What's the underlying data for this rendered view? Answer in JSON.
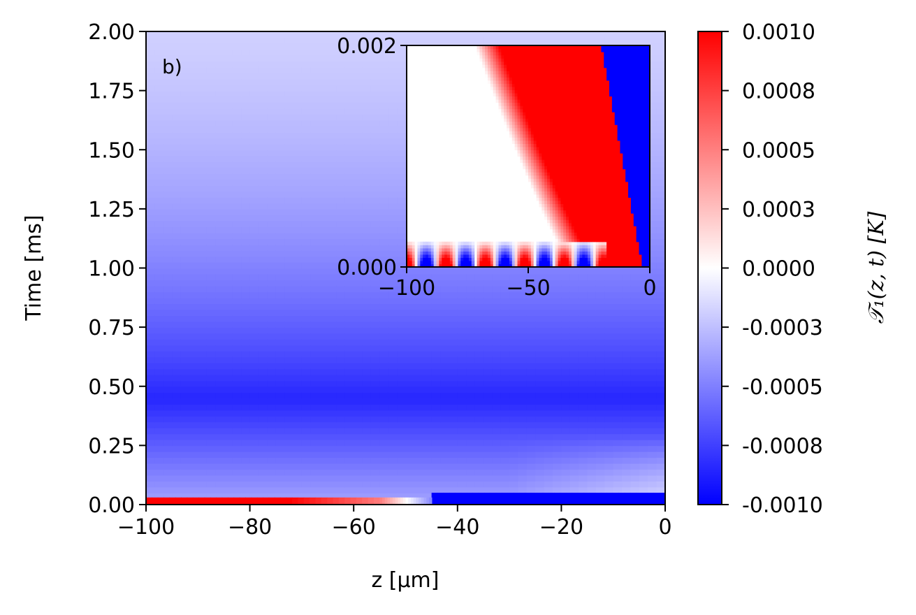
{
  "chart_data": [
    {
      "type": "heatmap",
      "panel_label": "b)",
      "xlabel": "z [µm]",
      "ylabel": "Time [ms]",
      "xlim": [
        -100,
        0
      ],
      "ylim": [
        0,
        2
      ],
      "x_ticks": [
        "−100",
        "−80",
        "−60",
        "−40",
        "−20",
        "0"
      ],
      "x_tick_values": [
        -100,
        -80,
        -60,
        -40,
        -20,
        0
      ],
      "y_ticks": [
        "0.00",
        "0.25",
        "0.50",
        "0.75",
        "1.00",
        "1.25",
        "1.50",
        "1.75",
        "2.00"
      ],
      "y_tick_values": [
        0,
        0.25,
        0.5,
        0.75,
        1.0,
        1.25,
        1.5,
        1.75,
        2.0
      ],
      "colormap": "bwr",
      "features": [
        {
          "description": "positive band near t=0 for z < -55",
          "z_range": [
            -100,
            -55
          ],
          "t_range": [
            0,
            0.03
          ],
          "value": 0.001
        },
        {
          "description": "negative band near t=0 for z > -45",
          "z_range": [
            -45,
            0
          ],
          "t_range": [
            0,
            0.05
          ],
          "value": -0.001
        },
        {
          "description": "broad cooling minimum",
          "t_center": 0.45,
          "value": -0.00085
        },
        {
          "description": "slow relaxation toward zero",
          "t": 2.0,
          "value": -0.00015
        }
      ]
    },
    {
      "type": "heatmap",
      "role": "inset",
      "xlim": [
        -100,
        0
      ],
      "ylim": [
        0,
        0.002
      ],
      "x_ticks": [
        "−100",
        "−50",
        "0"
      ],
      "x_tick_values": [
        -100,
        -50,
        0
      ],
      "y_ticks": [
        "0.000",
        "0.002"
      ],
      "y_tick_values": [
        0,
        0.002
      ],
      "colormap": "bwr",
      "features": [
        {
          "description": "alternating standing-wave lobes at early times",
          "z_range": [
            -100,
            -15
          ],
          "t_range": [
            0,
            0.00025
          ],
          "count": 12
        },
        {
          "description": "positive front widening with time",
          "value": 0.001
        },
        {
          "description": "negative region near surface",
          "z_range": [
            -18,
            0
          ],
          "value": -0.001
        }
      ]
    }
  ],
  "colorbar": {
    "label": "𝒯₁(z, t) [K]",
    "ticks": [
      "0.0010",
      "0.0008",
      "0.0005",
      "0.0003",
      "0.0000",
      "-0.0003",
      "-0.0005",
      "-0.0008",
      "-0.0010"
    ],
    "range": [
      -0.001,
      0.001
    ],
    "colors": {
      "max": "#ff0000",
      "mid": "#ffffff",
      "min": "#0000ff"
    }
  }
}
